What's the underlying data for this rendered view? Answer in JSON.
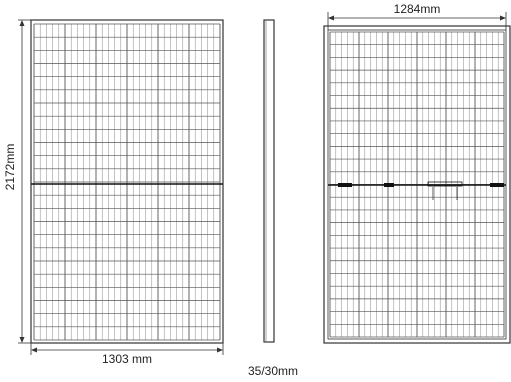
{
  "labels": {
    "height_front": "2172mm",
    "width_front": "1303 mm",
    "thickness": "35/30mm",
    "width_back": "1284mm"
  },
  "colors": {
    "line": "#333333",
    "cell": "#555555",
    "background": "#ffffff"
  }
}
